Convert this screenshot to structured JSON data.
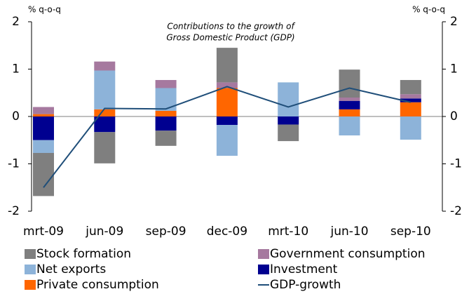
{
  "chart_data": {
    "type": "bar",
    "title": [
      "Contributions to the growth of",
      "Gross Domestic Product (GDP)"
    ],
    "y_axis_label": "% q-o-q",
    "y2_axis_label": "% q-o-q",
    "categories": [
      "mrt-09",
      "jun-09",
      "sep-09",
      "dec-09",
      "mrt-10",
      "jun-10",
      "sep-10"
    ],
    "series": [
      {
        "name": "Stock formation",
        "color": "#7f7f7f",
        "values": [
          -0.91,
          -0.66,
          -0.32,
          0.73,
          -0.35,
          0.59,
          0.3
        ]
      },
      {
        "name": "Government consumption",
        "color": "#a6799f",
        "values": [
          0.15,
          0.19,
          0.17,
          0.12,
          0,
          0.07,
          0.09
        ]
      },
      {
        "name": "Net exports",
        "color": "#8db3d9",
        "values": [
          -0.27,
          0.82,
          0.48,
          -0.65,
          0.72,
          -0.4,
          -0.49
        ]
      },
      {
        "name": "Investment",
        "color": "#000090",
        "values": [
          -0.5,
          -0.33,
          -0.3,
          -0.18,
          -0.17,
          0.18,
          0.08
        ]
      },
      {
        "name": "Private consumption",
        "color": "#ff6600",
        "values": [
          0.05,
          0.15,
          0.12,
          0.6,
          0,
          0.15,
          0.3
        ]
      },
      {
        "name": "GDP-growth",
        "type": "line",
        "color": "#1f4e79",
        "values": [
          -1.5,
          0.17,
          0.16,
          0.63,
          0.2,
          0.6,
          0.3
        ]
      }
    ],
    "ylim": [
      -2,
      2
    ],
    "yticks": [
      -2,
      -1,
      0,
      1,
      2
    ],
    "y2lim": [
      -2,
      2
    ],
    "y2ticks": [
      -2,
      -1,
      0,
      1,
      2
    ]
  }
}
